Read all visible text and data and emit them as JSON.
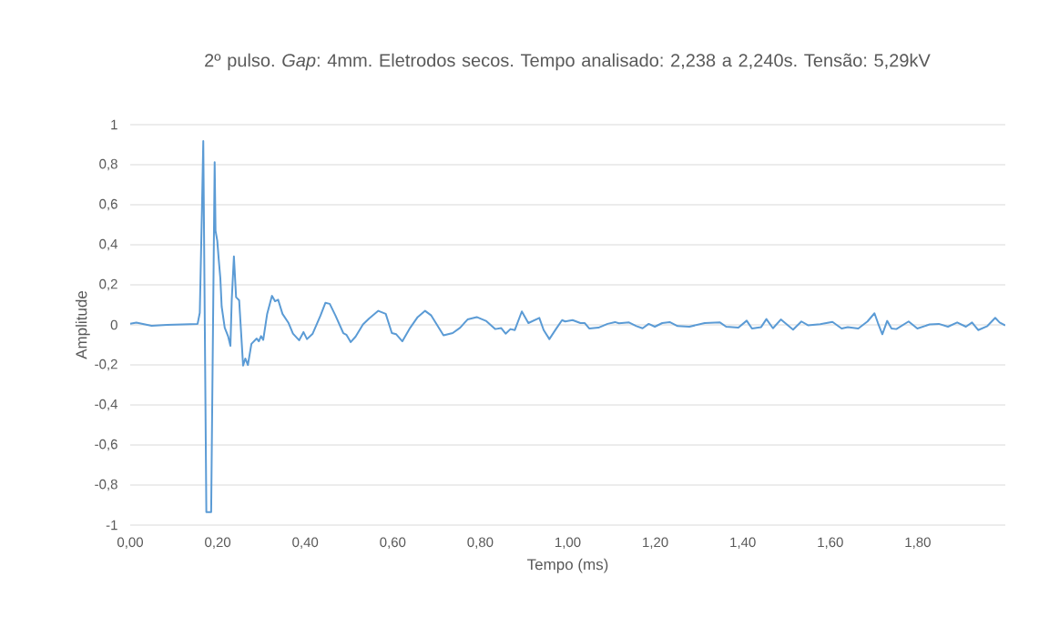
{
  "chart_data": {
    "type": "line",
    "title": "2º pulso. *Gap*: 4mm. Eletrodos secos. Tempo analisado: 2,238 a 2,240s. Tensão: 5,29kV",
    "xlabel": "Tempo (ms)",
    "ylabel": "Amplitude",
    "color": "#5b9bd5",
    "grid": "y",
    "x": [
      0,
      0.014,
      0.049,
      0.084,
      0.154,
      0.159,
      0.164,
      0.167,
      0.174,
      0.185,
      0.193,
      0.195,
      0.199,
      0.202,
      0.206,
      0.209,
      0.216,
      0.224,
      0.229,
      0.232,
      0.237,
      0.242,
      0.249,
      0.258,
      0.263,
      0.269,
      0.277,
      0.289,
      0.294,
      0.299,
      0.304,
      0.313,
      0.324,
      0.331,
      0.338,
      0.348,
      0.362,
      0.372,
      0.386,
      0.396,
      0.404,
      0.417,
      0.435,
      0.446,
      0.456,
      0.469,
      0.487,
      0.494,
      0.504,
      0.515,
      0.532,
      0.546,
      0.567,
      0.584,
      0.598,
      0.608,
      0.622,
      0.64,
      0.657,
      0.674,
      0.688,
      0.716,
      0.737,
      0.754,
      0.771,
      0.792,
      0.813,
      0.834,
      0.848,
      0.858,
      0.869,
      0.879,
      0.895,
      0.91,
      0.935,
      0.945,
      0.958,
      0.973,
      0.987,
      0.994,
      1.011,
      1.029,
      1.039,
      1.049,
      1.07,
      1.091,
      1.108,
      1.117,
      1.14,
      1.157,
      1.171,
      1.185,
      1.199,
      1.216,
      1.233,
      1.251,
      1.278,
      1.313,
      1.348,
      1.362,
      1.39,
      1.409,
      1.421,
      1.442,
      1.454,
      1.469,
      1.487,
      1.515,
      1.534,
      1.549,
      1.577,
      1.605,
      1.626,
      1.64,
      1.664,
      1.685,
      1.701,
      1.709,
      1.719,
      1.73,
      1.74,
      1.751,
      1.779,
      1.799,
      1.827,
      1.848,
      1.869,
      1.89,
      1.91,
      1.924,
      1.938,
      1.959,
      1.977,
      1.987,
      2.0
    ],
    "values": [
      0.006,
      0.011,
      -0.005,
      0.0,
      0.005,
      0.06,
      0.58,
      0.918,
      -0.935,
      -0.935,
      0.812,
      0.47,
      0.42,
      0.335,
      0.232,
      0.092,
      -0.014,
      -0.059,
      -0.105,
      0.123,
      0.342,
      0.138,
      0.123,
      -0.203,
      -0.168,
      -0.2,
      -0.095,
      -0.068,
      -0.082,
      -0.056,
      -0.075,
      0.055,
      0.145,
      0.118,
      0.126,
      0.055,
      0.009,
      -0.044,
      -0.077,
      -0.036,
      -0.071,
      -0.044,
      0.047,
      0.11,
      0.105,
      0.047,
      -0.041,
      -0.049,
      -0.086,
      -0.059,
      0.002,
      0.032,
      0.07,
      0.055,
      -0.041,
      -0.047,
      -0.082,
      -0.014,
      0.039,
      0.07,
      0.047,
      -0.052,
      -0.041,
      -0.014,
      0.027,
      0.039,
      0.02,
      -0.021,
      -0.016,
      -0.044,
      -0.021,
      -0.026,
      0.067,
      0.009,
      0.035,
      -0.026,
      -0.071,
      -0.021,
      0.024,
      0.017,
      0.024,
      0.009,
      0.009,
      -0.018,
      -0.014,
      0.005,
      0.014,
      0.008,
      0.012,
      -0.006,
      -0.017,
      0.005,
      -0.009,
      0.009,
      0.014,
      -0.006,
      -0.009,
      0.009,
      0.012,
      -0.009,
      -0.014,
      0.021,
      -0.018,
      -0.011,
      0.029,
      -0.017,
      0.027,
      -0.024,
      0.017,
      -0.002,
      0.003,
      0.015,
      -0.018,
      -0.011,
      -0.018,
      0.017,
      0.058,
      0.009,
      -0.047,
      0.02,
      -0.018,
      -0.021,
      0.017,
      -0.018,
      0.002,
      0.005,
      -0.009,
      0.012,
      -0.009,
      0.012,
      -0.026,
      -0.006,
      0.035,
      0.012,
      -0.003
    ],
    "xlim": [
      0,
      2.0
    ],
    "xticks": [
      {
        "value": 0,
        "label": "0,00"
      },
      {
        "value": 0.2,
        "label": "0,20"
      },
      {
        "value": 0.4,
        "label": "0,40"
      },
      {
        "value": 0.6,
        "label": "0,60"
      },
      {
        "value": 0.8,
        "label": "0,80"
      },
      {
        "value": 1.0,
        "label": "1,00"
      },
      {
        "value": 1.2,
        "label": "1,20"
      },
      {
        "value": 1.4,
        "label": "1,40"
      },
      {
        "value": 1.6,
        "label": "1,60"
      },
      {
        "value": 1.8,
        "label": "1,80"
      }
    ],
    "ylim": [
      -1,
      1
    ],
    "yticks": [
      -1,
      {
        "value": -0.8,
        "label": "-0,8"
      },
      {
        "value": -0.6,
        "label": "-0,6"
      },
      {
        "value": -0.4,
        "label": "-0,4"
      },
      {
        "value": -0.2,
        "label": "-0,2"
      },
      0,
      {
        "value": 0.2,
        "label": "0,2"
      },
      {
        "value": 0.4,
        "label": "0,4"
      },
      {
        "value": 0.6,
        "label": "0,6"
      },
      {
        "value": 0.8,
        "label": "0,8"
      },
      1
    ]
  }
}
